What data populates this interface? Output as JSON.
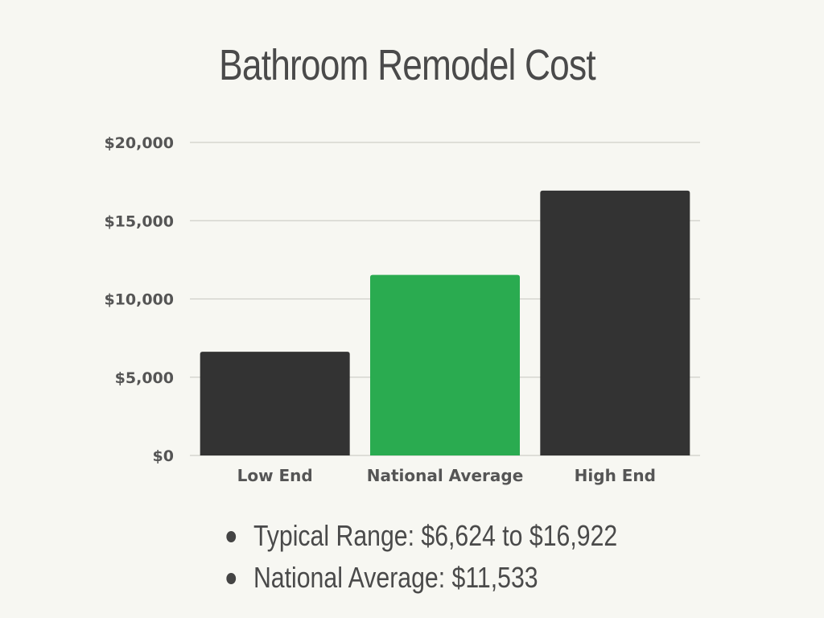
{
  "chart_data": {
    "type": "bar",
    "title": "Bathroom Remodel Cost",
    "categories": [
      "Low End",
      "National Average",
      "High End"
    ],
    "values": [
      6624,
      11533,
      16922
    ],
    "bar_colors": [
      "#333333",
      "#2aab50",
      "#333333"
    ],
    "ylim": [
      0,
      20000
    ],
    "yticks": [
      0,
      5000,
      10000,
      15000,
      20000
    ],
    "ytick_labels": [
      "$0",
      "$5,000",
      "$10,000",
      "$15,000",
      "$20,000"
    ],
    "xlabel": "",
    "ylabel": "",
    "grid": true
  },
  "bullets": [
    "Typical Range: $6,624 to $16,922",
    "National Average: $11,533"
  ],
  "colors": {
    "background": "#f7f7f2",
    "accent": "#2aab50",
    "bar_dark": "#333333"
  }
}
